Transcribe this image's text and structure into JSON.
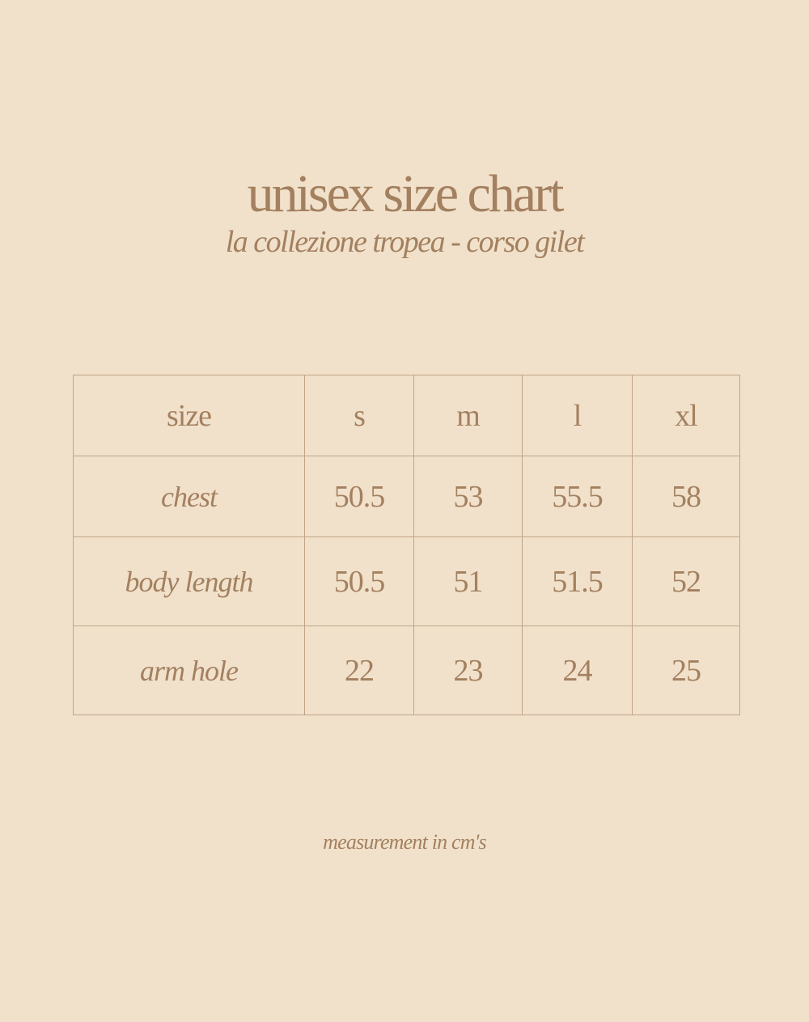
{
  "title": "unisex size chart",
  "subtitle": "la collezione tropea - corso gilet",
  "colors": {
    "background": "#f1e1cb",
    "text": "#a3805f",
    "border": "#c0a487"
  },
  "table": {
    "header": [
      "size",
      "s",
      "m",
      "l",
      "xl"
    ],
    "rows": [
      {
        "label": "chest",
        "values": [
          "50.5",
          "53",
          "55.5",
          "58"
        ]
      },
      {
        "label": "body length",
        "values": [
          "50.5",
          "51",
          "51.5",
          "52"
        ]
      },
      {
        "label": "arm hole",
        "values": [
          "22",
          "23",
          "24",
          "25"
        ]
      }
    ]
  },
  "note": "measurement in cm's"
}
